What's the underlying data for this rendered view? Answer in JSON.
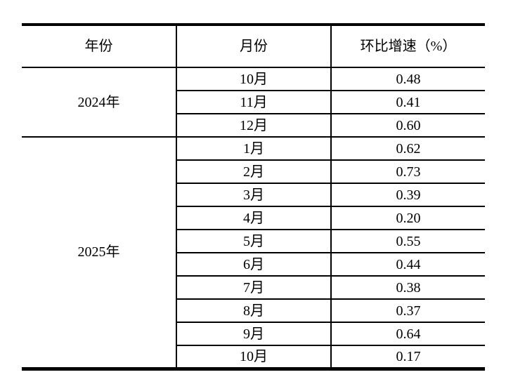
{
  "page": {
    "background_color": "#ffffff",
    "text_color": "#000000",
    "border_color": "#000000"
  },
  "table": {
    "columns": [
      "年份",
      "月份",
      "环比增速（%）"
    ],
    "groups": [
      {
        "year": "2024年",
        "rows": [
          {
            "month": "10月",
            "value": "0.48"
          },
          {
            "month": "11月",
            "value": "0.41"
          },
          {
            "month": "12月",
            "value": "0.60"
          }
        ]
      },
      {
        "year": "2025年",
        "rows": [
          {
            "month": "1月",
            "value": "0.62"
          },
          {
            "month": "2月",
            "value": "0.73"
          },
          {
            "month": "3月",
            "value": "0.39"
          },
          {
            "month": "4月",
            "value": "0.20"
          },
          {
            "month": "5月",
            "value": "0.55"
          },
          {
            "month": "6月",
            "value": "0.44"
          },
          {
            "month": "7月",
            "value": "0.38"
          },
          {
            "month": "8月",
            "value": "0.37"
          },
          {
            "month": "9月",
            "value": "0.64"
          },
          {
            "month": "10月",
            "value": "0.17"
          }
        ]
      }
    ]
  },
  "chart_data": {
    "type": "table",
    "title": "",
    "columns": [
      "年份",
      "月份",
      "环比增速（%）"
    ],
    "rows": [
      [
        "2024年",
        "10月",
        0.48
      ],
      [
        "2024年",
        "11月",
        0.41
      ],
      [
        "2024年",
        "12月",
        0.6
      ],
      [
        "2025年",
        "1月",
        0.62
      ],
      [
        "2025年",
        "2月",
        0.73
      ],
      [
        "2025年",
        "3月",
        0.39
      ],
      [
        "2025年",
        "4月",
        0.2
      ],
      [
        "2025年",
        "5月",
        0.55
      ],
      [
        "2025年",
        "6月",
        0.44
      ],
      [
        "2025年",
        "7月",
        0.38
      ],
      [
        "2025年",
        "8月",
        0.37
      ],
      [
        "2025年",
        "9月",
        0.64
      ],
      [
        "2025年",
        "10月",
        0.17
      ]
    ]
  }
}
